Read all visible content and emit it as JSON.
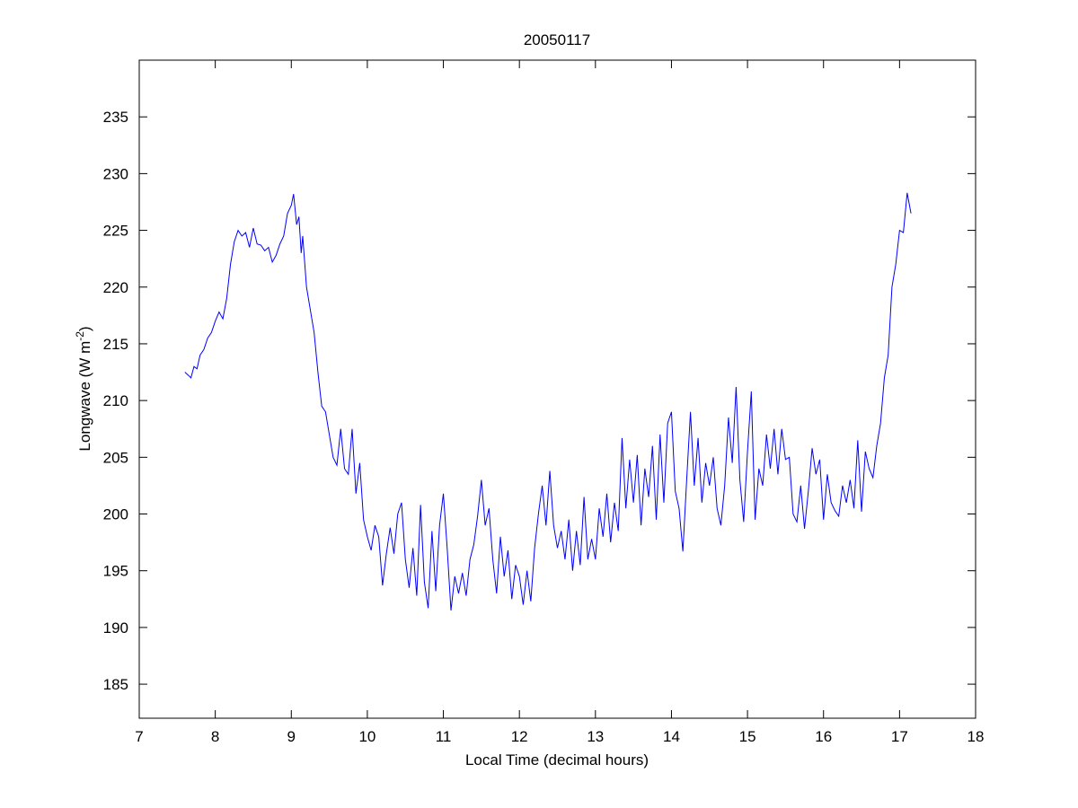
{
  "chart_data": {
    "type": "line",
    "title": "20050117",
    "xlabel": "Local Time (decimal hours)",
    "ylabel": [
      "Longwave (W m",
      "-2",
      ")"
    ],
    "color": "#0000ff",
    "xlim": [
      7,
      18
    ],
    "xticks": [
      7,
      8,
      9,
      10,
      11,
      12,
      13,
      14,
      15,
      16,
      17,
      18
    ],
    "ylim": [
      182,
      240
    ],
    "yticks": [
      185,
      190,
      195,
      200,
      205,
      210,
      215,
      220,
      225,
      230,
      235
    ],
    "x": [
      7.6,
      7.65,
      7.68,
      7.72,
      7.76,
      7.8,
      7.85,
      7.9,
      7.95,
      8.0,
      8.05,
      8.1,
      8.15,
      8.2,
      8.25,
      8.3,
      8.35,
      8.4,
      8.45,
      8.5,
      8.55,
      8.6,
      8.65,
      8.7,
      8.75,
      8.8,
      8.85,
      8.9,
      8.95,
      9.0,
      9.03,
      9.07,
      9.1,
      9.13,
      9.15,
      9.2,
      9.25,
      9.3,
      9.35,
      9.4,
      9.45,
      9.5,
      9.55,
      9.6,
      9.65,
      9.7,
      9.75,
      9.8,
      9.85,
      9.9,
      9.95,
      10.0,
      10.05,
      10.1,
      10.15,
      10.2,
      10.25,
      10.3,
      10.35,
      10.4,
      10.45,
      10.5,
      10.55,
      10.6,
      10.65,
      10.7,
      10.75,
      10.8,
      10.85,
      10.9,
      10.95,
      11.0,
      11.05,
      11.1,
      11.15,
      11.2,
      11.25,
      11.3,
      11.35,
      11.4,
      11.45,
      11.5,
      11.55,
      11.6,
      11.65,
      11.7,
      11.75,
      11.8,
      11.85,
      11.9,
      11.95,
      12.0,
      12.05,
      12.1,
      12.15,
      12.2,
      12.25,
      12.3,
      12.35,
      12.4,
      12.45,
      12.5,
      12.55,
      12.6,
      12.65,
      12.7,
      12.75,
      12.8,
      12.85,
      12.9,
      12.95,
      13.0,
      13.05,
      13.1,
      13.15,
      13.2,
      13.25,
      13.3,
      13.35,
      13.4,
      13.45,
      13.5,
      13.55,
      13.6,
      13.65,
      13.7,
      13.75,
      13.8,
      13.85,
      13.9,
      13.95,
      14.0,
      14.05,
      14.1,
      14.15,
      14.2,
      14.25,
      14.3,
      14.35,
      14.4,
      14.45,
      14.5,
      14.55,
      14.6,
      14.65,
      14.7,
      14.75,
      14.8,
      14.85,
      14.9,
      14.95,
      15.0,
      15.05,
      15.1,
      15.15,
      15.2,
      15.25,
      15.3,
      15.35,
      15.4,
      15.45,
      15.5,
      15.55,
      15.6,
      15.65,
      15.7,
      15.75,
      15.8,
      15.85,
      15.9,
      15.95,
      16.0,
      16.05,
      16.1,
      16.15,
      16.2,
      16.25,
      16.3,
      16.35,
      16.4,
      16.45,
      16.5,
      16.55,
      16.6,
      16.65,
      16.7,
      16.75,
      16.8,
      16.85,
      16.9,
      16.95,
      17.0,
      17.05,
      17.1,
      17.15
    ],
    "values": [
      212.5,
      212.2,
      212,
      213,
      212.8,
      214,
      214.5,
      215.5,
      216,
      217,
      217.8,
      217.2,
      219,
      222,
      224,
      225,
      224.5,
      224.8,
      223.5,
      225.2,
      223.8,
      223.7,
      223.2,
      223.5,
      222.2,
      222.8,
      223.8,
      224.5,
      226.5,
      227.2,
      228.2,
      225.5,
      226.2,
      223,
      224.5,
      220,
      218,
      216,
      212.5,
      209.5,
      209,
      207,
      205,
      204.3,
      207.5,
      204,
      203.5,
      207.5,
      201.8,
      204.5,
      199.5,
      198,
      196.8,
      199,
      198,
      193.7,
      196.5,
      198.8,
      196.5,
      200,
      201,
      196,
      193.5,
      197,
      192.8,
      200.8,
      194,
      191.7,
      198.5,
      193.2,
      199,
      201.8,
      197,
      191.5,
      194.5,
      193,
      194.8,
      192.8,
      196,
      197.3,
      199.8,
      203,
      199,
      200.5,
      196,
      193,
      198,
      194.5,
      196.8,
      192.5,
      195.5,
      194.5,
      192,
      195,
      192.3,
      197,
      200,
      202.5,
      199,
      203.8,
      199,
      197,
      198.5,
      196,
      199.5,
      195,
      198.5,
      195.5,
      201.5,
      196,
      197.8,
      196,
      200.5,
      198,
      201.8,
      197.5,
      201,
      198.5,
      206.7,
      200.5,
      204.8,
      201,
      205.2,
      199,
      204,
      201.5,
      206,
      199.5,
      207,
      201,
      208,
      209,
      202,
      200.5,
      196.7,
      203,
      209,
      202.5,
      206.7,
      201,
      204.5,
      202.5,
      205,
      200.5,
      199,
      202.5,
      208.5,
      204.5,
      211.2,
      203,
      199.3,
      205.5,
      210.8,
      199.5,
      204,
      202.5,
      207,
      204,
      207.5,
      203.5,
      207.5,
      204.8,
      205,
      200,
      199.3,
      202.5,
      198.7,
      202,
      205.8,
      203.5,
      204.8,
      199.5,
      203.5,
      201,
      200.3,
      199.8,
      202.5,
      201,
      203,
      200.5,
      206.5,
      200.2,
      205.5,
      204,
      203.2,
      206,
      208,
      212,
      214,
      220,
      222,
      225,
      224.8,
      228.3,
      226.5
    ]
  }
}
